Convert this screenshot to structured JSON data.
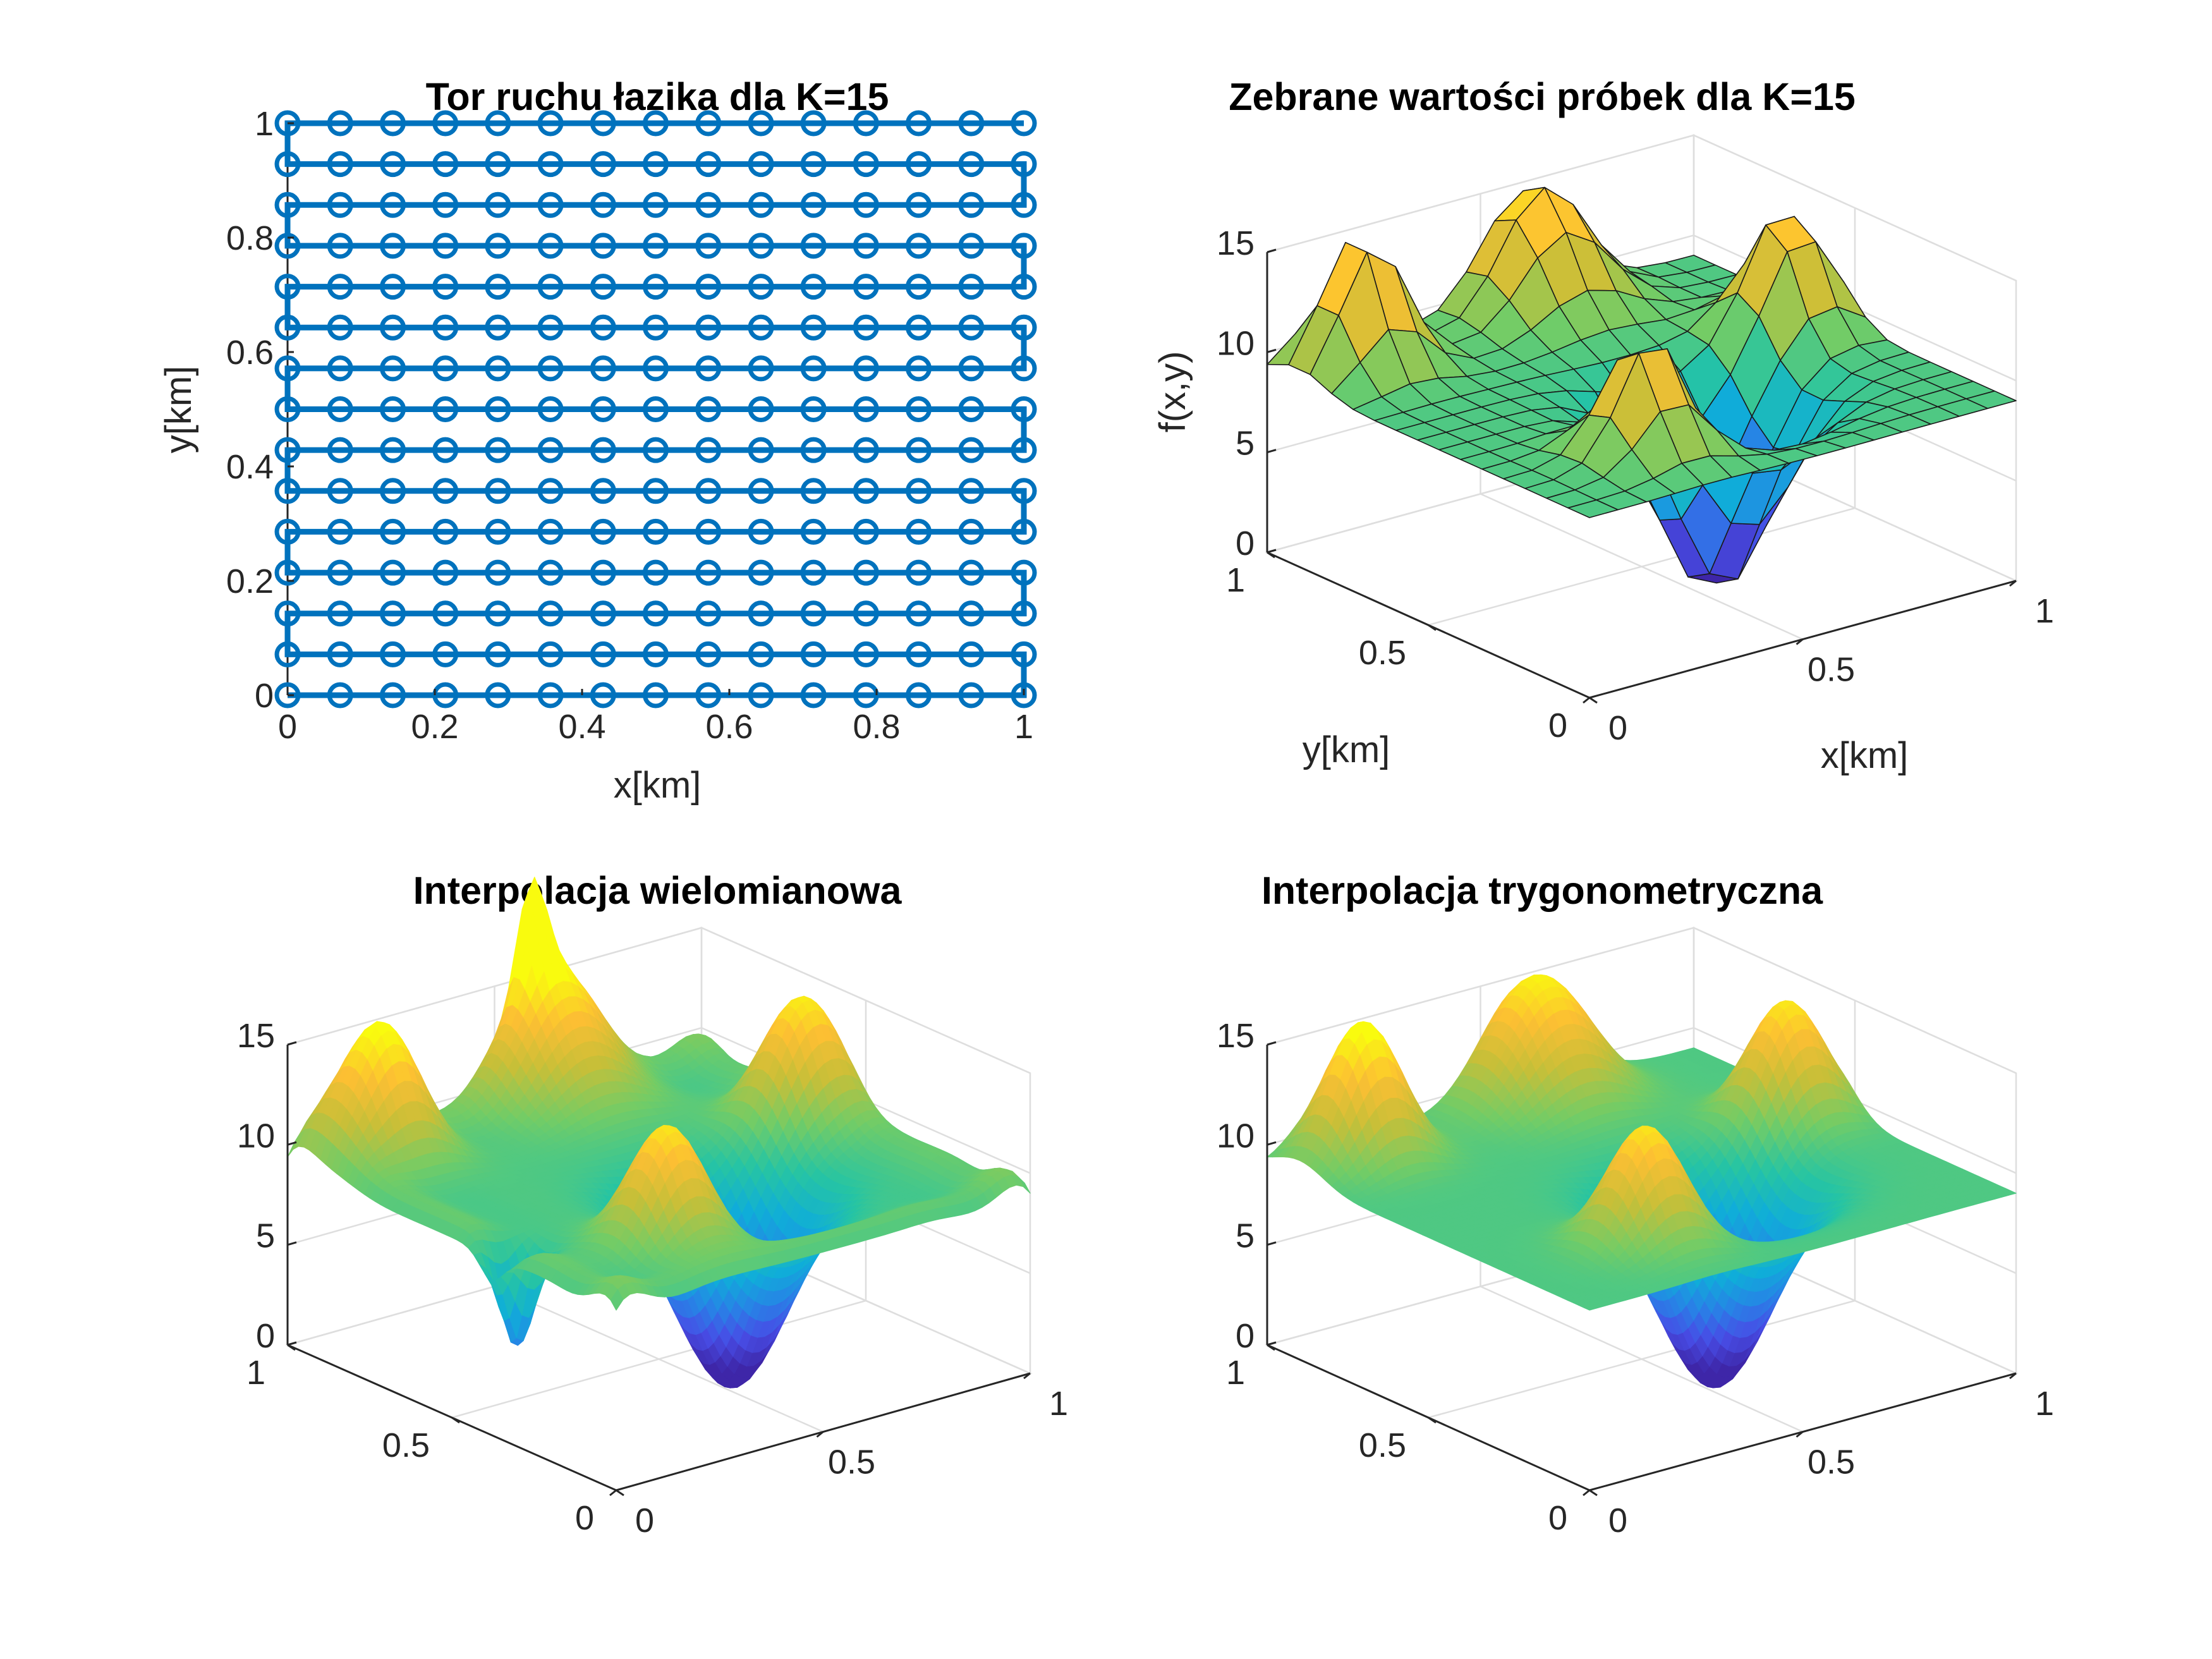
{
  "chart_data": [
    {
      "type": "line",
      "title": "Tor ruchu łazika dla K=15",
      "xlabel": "x[km]",
      "ylabel": "y[km]",
      "xlim": [
        0,
        1
      ],
      "ylim": [
        0,
        1
      ],
      "x_ticks": [
        "0",
        "0.2",
        "0.4",
        "0.6",
        "0.8",
        "1"
      ],
      "y_ticks": [
        "0",
        "0.2",
        "0.4",
        "0.6",
        "0.8",
        "1"
      ],
      "grid": false,
      "color": "#0072BD",
      "rows": 15,
      "points_per_row": 15,
      "x": [
        0,
        0.0714,
        0.1429,
        0.2143,
        0.2857,
        0.3571,
        0.4286,
        0.5,
        0.5714,
        0.6429,
        0.7143,
        0.7857,
        0.8571,
        0.9286,
        1
      ],
      "y": [
        0,
        0.0714,
        0.1429,
        0.2143,
        0.2857,
        0.3571,
        0.4286,
        0.5,
        0.5714,
        0.6429,
        0.7143,
        0.7857,
        0.8571,
        0.9286,
        1
      ],
      "path": "serpentine"
    },
    {
      "type": "surface",
      "title": "Zebrane wartości próbek dla K=15",
      "xlabel": "x[km]",
      "ylabel": "y[km]",
      "zlabel": "f(x,y)",
      "xlim": [
        0,
        1
      ],
      "ylim": [
        0,
        1
      ],
      "zlim": [
        0,
        15
      ],
      "x_ticks": [
        "0",
        "0.5",
        "1"
      ],
      "y_ticks": [
        "0",
        "0.5",
        "1"
      ],
      "z_ticks": [
        "0",
        "5",
        "10",
        "15"
      ],
      "grid": true,
      "resolution": 15,
      "faceted": true,
      "colormap": "parula"
    },
    {
      "type": "surface",
      "title": "Interpolacja wielomianowa",
      "xlim": [
        0,
        1
      ],
      "ylim": [
        0,
        1
      ],
      "zlim": [
        0,
        15
      ],
      "x_ticks": [
        "0",
        "0.5",
        "1"
      ],
      "y_ticks": [
        "0",
        "0.5",
        "1"
      ],
      "z_ticks": [
        "0",
        "5",
        "10",
        "15"
      ],
      "grid": true,
      "faceted": false,
      "colormap": "parula"
    },
    {
      "type": "surface",
      "title": "Interpolacja trygonometryczna",
      "xlim": [
        0,
        1
      ],
      "ylim": [
        0,
        1
      ],
      "zlim": [
        0,
        15
      ],
      "x_ticks": [
        "0",
        "0.5",
        "1"
      ],
      "y_ticks": [
        "0",
        "0.5",
        "1"
      ],
      "z_ticks": [
        "0",
        "5",
        "10",
        "15"
      ],
      "grid": true,
      "faceted": false,
      "colormap": "parula"
    }
  ]
}
